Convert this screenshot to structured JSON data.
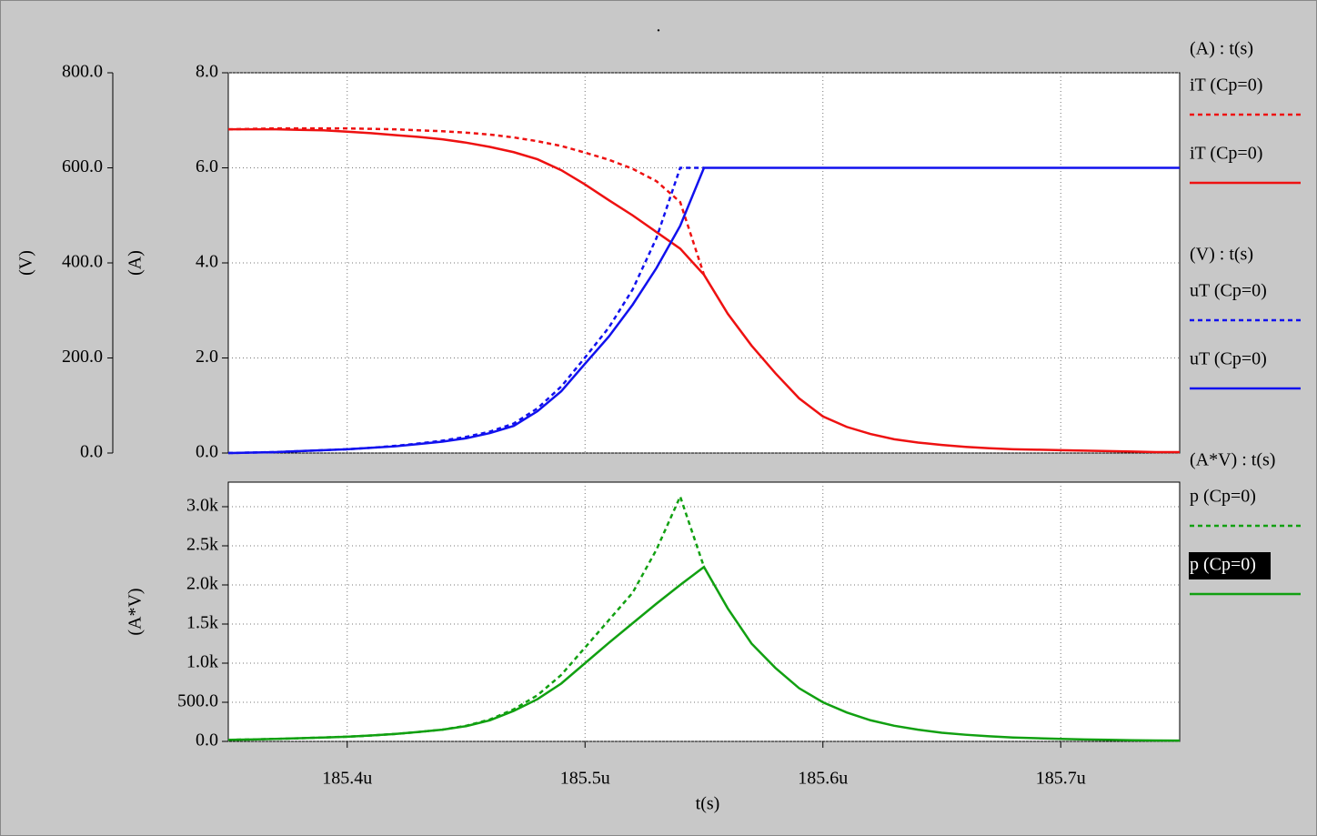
{
  "chart_data": [
    {
      "type": "line",
      "title": ".",
      "ylabel": "(A)",
      "y2label": "(V)",
      "legend_headers": [
        "(A) : t(s)",
        "(V) : t(s)"
      ],
      "x": [
        185.35,
        185.36,
        185.37,
        185.38,
        185.39,
        185.4,
        185.41,
        185.42,
        185.43,
        185.44,
        185.45,
        185.46,
        185.47,
        185.48,
        185.49,
        185.5,
        185.51,
        185.52,
        185.53,
        185.54,
        185.55,
        185.56,
        185.57,
        185.58,
        185.59,
        185.6,
        185.61,
        185.62,
        185.63,
        185.64,
        185.65,
        185.66,
        185.67,
        185.68,
        185.69,
        185.7,
        185.71,
        185.72,
        185.73,
        185.74,
        185.75
      ],
      "xlim": [
        185.35,
        185.75
      ],
      "xticks": [
        185.4,
        185.5,
        185.6,
        185.7
      ],
      "ylim": [
        0,
        8
      ],
      "yticks": [
        {
          "value": 0,
          "label": "0.0"
        },
        {
          "value": 2,
          "label": "2.0"
        },
        {
          "value": 4,
          "label": "4.0"
        },
        {
          "value": 6,
          "label": "6.0"
        },
        {
          "value": 8,
          "label": "8.0"
        }
      ],
      "y2lim": [
        0,
        800
      ],
      "y2ticks": [
        {
          "value": 0,
          "label": "0.0"
        },
        {
          "value": 200,
          "label": "200.0"
        },
        {
          "value": 400,
          "label": "400.0"
        },
        {
          "value": 600,
          "label": "600.0"
        },
        {
          "value": 800,
          "label": "800.0"
        }
      ],
      "grid": true,
      "series": [
        {
          "name": "iT (Cp=0)",
          "color": "#ee1111",
          "dashed": true,
          "values": [
            6.81,
            6.82,
            6.83,
            6.83,
            6.83,
            6.83,
            6.82,
            6.81,
            6.79,
            6.77,
            6.74,
            6.7,
            6.64,
            6.56,
            6.46,
            6.32,
            6.17,
            5.98,
            5.72,
            5.28,
            3.75,
            null,
            null,
            null,
            null,
            null,
            null,
            null,
            null,
            null,
            null,
            null,
            null,
            null,
            null,
            null,
            null,
            null,
            null,
            null,
            null
          ]
        },
        {
          "name": "iT (Cp=0)",
          "color": "#ee1111",
          "values": [
            6.81,
            6.81,
            6.81,
            6.8,
            6.79,
            6.76,
            6.73,
            6.69,
            6.65,
            6.6,
            6.53,
            6.44,
            6.33,
            6.18,
            5.95,
            5.65,
            5.32,
            5.0,
            4.65,
            4.3,
            3.75,
            2.93,
            2.26,
            1.68,
            1.15,
            0.77,
            0.55,
            0.4,
            0.29,
            0.22,
            0.17,
            0.13,
            0.1,
            0.08,
            0.07,
            0.06,
            0.05,
            0.04,
            0.03,
            0.02,
            0.02
          ]
        },
        {
          "name": "uT (Cp=0)",
          "color": "#1111ee",
          "dashed": true,
          "axis": "y2",
          "values": [
            0,
            1,
            2,
            4,
            6,
            8,
            11,
            15,
            20,
            26,
            34,
            45,
            62,
            94,
            140,
            201,
            264,
            344,
            452,
            600,
            600,
            null,
            null,
            null,
            null,
            null,
            null,
            null,
            null,
            null,
            null,
            null,
            null,
            null,
            null,
            null,
            null,
            null,
            null,
            null,
            null
          ]
        },
        {
          "name": "uT (Cp=0)",
          "color": "#1111ee",
          "axis": "y2",
          "values": [
            0,
            1,
            2,
            4,
            6,
            8,
            11,
            14,
            19,
            24,
            31,
            42,
            57,
            88,
            130,
            188,
            245,
            312,
            389,
            478,
            600,
            600,
            600,
            600,
            600,
            600,
            600,
            600,
            600,
            600,
            600,
            600,
            600,
            600,
            600,
            600,
            600,
            600,
            600,
            600,
            600
          ]
        }
      ]
    },
    {
      "type": "line",
      "ylabel": "(A*V)",
      "xlabel": "t(s)",
      "legend_headers": [
        "(A*V) : t(s)"
      ],
      "x": [
        185.35,
        185.36,
        185.37,
        185.38,
        185.39,
        185.4,
        185.41,
        185.42,
        185.43,
        185.44,
        185.45,
        185.46,
        185.47,
        185.48,
        185.49,
        185.5,
        185.51,
        185.52,
        185.53,
        185.54,
        185.55,
        185.56,
        185.57,
        185.58,
        185.59,
        185.6,
        185.61,
        185.62,
        185.63,
        185.64,
        185.65,
        185.66,
        185.67,
        185.68,
        185.69,
        185.7,
        185.71,
        185.72,
        185.73,
        185.74,
        185.75
      ],
      "xlim": [
        185.35,
        185.75
      ],
      "xticks": [
        {
          "value": 185.4,
          "label": "185.4u"
        },
        {
          "value": 185.5,
          "label": "185.5u"
        },
        {
          "value": 185.6,
          "label": "185.6u"
        },
        {
          "value": 185.7,
          "label": "185.7u"
        }
      ],
      "ylim": [
        0,
        3314
      ],
      "yticks": [
        {
          "value": 0,
          "label": "0.0"
        },
        {
          "value": 500,
          "label": "500.0"
        },
        {
          "value": 1000,
          "label": "1.0k"
        },
        {
          "value": 1500,
          "label": "1.5k"
        },
        {
          "value": 2000,
          "label": "2.0k"
        },
        {
          "value": 2500,
          "label": "2.5k"
        },
        {
          "value": 3000,
          "label": "3.0k"
        }
      ],
      "grid": true,
      "series": [
        {
          "name": "p (Cp=0)",
          "color": "#11a011",
          "dashed": true,
          "values": [
            20,
            25,
            32,
            40,
            50,
            60,
            75,
            95,
            120,
            150,
            200,
            280,
            410,
            590,
            850,
            1200,
            1550,
            1900,
            2450,
            3130,
            2230,
            null,
            null,
            null,
            null,
            null,
            null,
            null,
            null,
            null,
            null,
            null,
            null,
            null,
            null,
            null,
            null,
            null,
            null,
            null,
            null
          ]
        },
        {
          "name": "p (Cp=0)",
          "color": "#11a011",
          "highlight": true,
          "values": [
            20,
            25,
            32,
            40,
            50,
            60,
            75,
            95,
            120,
            150,
            195,
            270,
            390,
            540,
            740,
            1000,
            1260,
            1510,
            1760,
            2000,
            2230,
            1700,
            1250,
            940,
            680,
            500,
            370,
            270,
            200,
            150,
            110,
            85,
            65,
            50,
            40,
            32,
            25,
            20,
            15,
            12,
            10
          ]
        }
      ]
    }
  ]
}
